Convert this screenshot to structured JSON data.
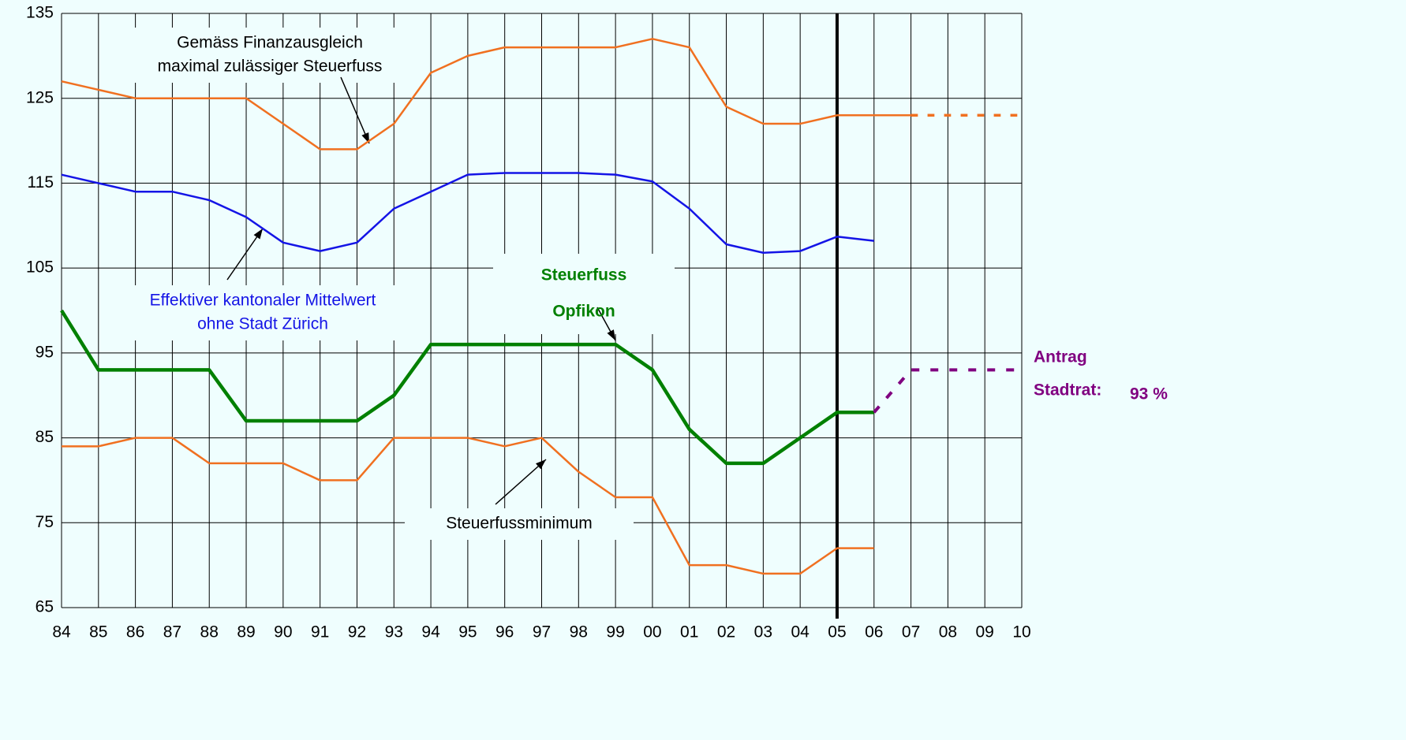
{
  "chart_data": {
    "type": "line",
    "categories": [
      "84",
      "85",
      "86",
      "87",
      "88",
      "89",
      "90",
      "91",
      "92",
      "93",
      "94",
      "95",
      "96",
      "97",
      "98",
      "99",
      "00",
      "01",
      "02",
      "03",
      "04",
      "05",
      "06",
      "07",
      "08",
      "09",
      "10"
    ],
    "ylim": [
      65,
      135
    ],
    "yticks": [
      65,
      75,
      85,
      95,
      105,
      115,
      125,
      135
    ],
    "grid": true,
    "reference_category": "05",
    "series": [
      {
        "color": "#f07020",
        "width": 2.5,
        "dash": false,
        "values": [
          127,
          126,
          125,
          125,
          125,
          125,
          122,
          119,
          119,
          122,
          128,
          130,
          131,
          131,
          131,
          131,
          132,
          131,
          124,
          122,
          122,
          123,
          123,
          123,
          null,
          null,
          null
        ]
      },
      {
        "color": "#f07020",
        "width": 3.5,
        "dash": true,
        "values": [
          null,
          null,
          null,
          null,
          null,
          null,
          null,
          null,
          null,
          null,
          null,
          null,
          null,
          null,
          null,
          null,
          null,
          null,
          null,
          null,
          null,
          null,
          null,
          123,
          123,
          123,
          123
        ]
      },
      {
        "color": "#1414e6",
        "width": 2.5,
        "dash": false,
        "values": [
          116,
          115,
          114,
          114,
          113,
          111,
          108,
          107,
          108,
          112,
          114,
          116,
          116.2,
          116.2,
          116.2,
          116,
          115.2,
          112,
          107.8,
          106.8,
          107,
          108.7,
          108.2,
          null,
          null,
          null,
          null
        ]
      },
      {
        "color": "#008000",
        "width": 4.5,
        "dash": false,
        "values": [
          100,
          93,
          93,
          93,
          93,
          87,
          87,
          87,
          87,
          90,
          96,
          96,
          96,
          96,
          96,
          96,
          93,
          86,
          82,
          82,
          85,
          88,
          88,
          null,
          null,
          null,
          null
        ]
      },
      {
        "color": "#800080",
        "width": 4,
        "dash": true,
        "values": [
          null,
          null,
          null,
          null,
          null,
          null,
          null,
          null,
          null,
          null,
          null,
          null,
          null,
          null,
          null,
          null,
          null,
          null,
          null,
          null,
          null,
          null,
          88,
          93,
          93,
          93,
          93
        ]
      },
      {
        "color": "#f07020",
        "width": 2.5,
        "dash": false,
        "values": [
          84,
          84,
          85,
          85,
          82,
          82,
          82,
          80,
          80,
          85,
          85,
          85,
          84,
          85,
          81,
          78,
          78,
          70,
          70,
          69,
          69,
          72,
          72,
          null,
          null,
          null,
          null
        ]
      }
    ],
    "annotations": [
      {
        "lines": [
          "Gemäss Finanzausgleich",
          "maximal zulässiger Steuerfuss"
        ],
        "color": "#000000"
      },
      {
        "lines": [
          "Effektiver kantonaler Mittelwert",
          "ohne Stadt Zürich"
        ],
        "color": "#1414e6"
      },
      {
        "lines": [
          "Steuerfuss",
          "Opfikon"
        ],
        "color": "#008000"
      },
      {
        "lines": [
          "Steuerfussminimum"
        ],
        "color": "#000000"
      },
      {
        "lines": [
          "Antrag",
          "Stadtrat:"
        ],
        "color": "#800080"
      },
      {
        "lines": [
          "93 %"
        ],
        "color": "#800080"
      }
    ]
  }
}
